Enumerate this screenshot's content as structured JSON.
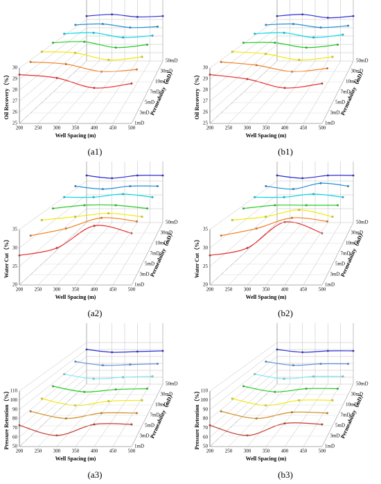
{
  "chart_data": [
    {
      "type": "line3d",
      "label": "(a1)",
      "x_label": "Well Spacing (m)",
      "y_label": "Oil Recovery（%）",
      "z_label": "Permeability（mD）",
      "x": [
        200,
        300,
        400,
        500
      ],
      "xlim": [
        200,
        500
      ],
      "xticks": [
        200,
        250,
        300,
        350,
        400,
        450,
        500
      ],
      "ylim": [
        25,
        30
      ],
      "yticks": [
        25,
        26,
        27,
        28,
        29,
        30
      ],
      "series": [
        {
          "name": "1mD",
          "color": "#e8282a",
          "values": [
            29.4,
            29.1,
            28.2,
            28.6
          ]
        },
        {
          "name": "3mD",
          "color": "#f07d1a",
          "values": [
            29.8,
            29.6,
            28.9,
            29.1
          ]
        },
        {
          "name": "5mD",
          "color": "#f2ea00",
          "values": [
            30.0,
            29.9,
            29.2,
            29.5
          ]
        },
        {
          "name": "7mD",
          "color": "#22cc22",
          "values": [
            30.1,
            30.2,
            29.6,
            29.9
          ]
        },
        {
          "name": "10mD",
          "color": "#00d8e8",
          "values": [
            30.2,
            30.3,
            29.8,
            30.0
          ]
        },
        {
          "name": "30mD",
          "color": "#1e8fd8",
          "values": [
            30.3,
            30.4,
            30.0,
            30.1
          ]
        },
        {
          "name": "50mD",
          "color": "#2b2bd0",
          "values": [
            30.4,
            30.6,
            30.3,
            30.4
          ]
        }
      ]
    },
    {
      "type": "line3d",
      "label": "(b1)",
      "x_label": "Well Spacing (m)",
      "y_label": "Oil Recovery（%）",
      "z_label": "Permeability（mD）",
      "x": [
        200,
        300,
        400,
        500
      ],
      "xlim": [
        200,
        500
      ],
      "xticks": [
        200,
        250,
        300,
        350,
        400,
        450,
        500
      ],
      "ylim": [
        25,
        30
      ],
      "yticks": [
        25,
        26,
        27,
        28,
        29,
        30
      ],
      "series": [
        {
          "name": "1mD",
          "color": "#e8282a",
          "values": [
            29.4,
            29.0,
            28.2,
            28.6
          ]
        },
        {
          "name": "3mD",
          "color": "#f07d1a",
          "values": [
            29.8,
            29.5,
            28.9,
            29.2
          ]
        },
        {
          "name": "5mD",
          "color": "#f2ea00",
          "values": [
            30.0,
            29.8,
            29.2,
            29.5
          ]
        },
        {
          "name": "7mD",
          "color": "#22cc22",
          "values": [
            30.1,
            30.1,
            29.6,
            29.9
          ]
        },
        {
          "name": "10mD",
          "color": "#00d8e8",
          "values": [
            30.2,
            30.3,
            29.8,
            30.1
          ]
        },
        {
          "name": "30mD",
          "color": "#1e8fd8",
          "values": [
            30.3,
            30.4,
            30.0,
            30.2
          ]
        },
        {
          "name": "50mD",
          "color": "#2b2bd0",
          "values": [
            30.4,
            30.6,
            30.2,
            30.4
          ]
        }
      ]
    },
    {
      "type": "line3d",
      "label": "(a2)",
      "x_label": "Well Spacing (m)",
      "y_label": "Water Cut（%）",
      "z_label": "Permeability（mD）",
      "x": [
        200,
        300,
        400,
        500
      ],
      "xlim": [
        200,
        500
      ],
      "xticks": [
        200,
        250,
        300,
        350,
        400,
        450,
        500
      ],
      "ylim": [
        20,
        35
      ],
      "yticks": [
        20,
        25,
        30,
        35
      ],
      "series": [
        {
          "name": "1mD",
          "color": "#e8282a",
          "values": [
            28,
            30,
            36,
            34
          ]
        },
        {
          "name": "3mD",
          "color": "#f07d1a",
          "values": [
            31,
            33,
            36,
            35
          ]
        },
        {
          "name": "5mD",
          "color": "#f2ea00",
          "values": [
            33,
            34,
            35,
            34
          ]
        },
        {
          "name": "7mD",
          "color": "#22cc22",
          "values": [
            34,
            35,
            35,
            34
          ]
        },
        {
          "name": "10mD",
          "color": "#00d8e8",
          "values": [
            35,
            35,
            36,
            35
          ]
        },
        {
          "name": "30mD",
          "color": "#1e8fd8",
          "values": [
            36,
            35,
            36,
            36
          ]
        },
        {
          "name": "50mD",
          "color": "#2b2bd0",
          "values": [
            37,
            36,
            37,
            37
          ]
        }
      ]
    },
    {
      "type": "line3d",
      "label": "(b2)",
      "x_label": "Well Spacing (m)",
      "y_label": "Water Cut（%）",
      "z_label": "Permeability（mD）",
      "x": [
        200,
        300,
        400,
        500
      ],
      "xlim": [
        200,
        500
      ],
      "xticks": [
        200,
        250,
        300,
        350,
        400,
        450,
        500
      ],
      "ylim": [
        20,
        35
      ],
      "yticks": [
        20,
        25,
        30,
        35
      ],
      "series": [
        {
          "name": "1mD",
          "color": "#e8282a",
          "values": [
            28,
            30,
            37,
            34
          ]
        },
        {
          "name": "3mD",
          "color": "#f07d1a",
          "values": [
            31,
            33,
            36,
            35
          ]
        },
        {
          "name": "5mD",
          "color": "#f2ea00",
          "values": [
            33,
            34,
            36,
            34
          ]
        },
        {
          "name": "7mD",
          "color": "#22cc22",
          "values": [
            34,
            35,
            35,
            35
          ]
        },
        {
          "name": "10mD",
          "color": "#00d8e8",
          "values": [
            35,
            35,
            36,
            35
          ]
        },
        {
          "name": "30mD",
          "color": "#1e8fd8",
          "values": [
            36,
            35,
            37,
            36
          ]
        },
        {
          "name": "50mD",
          "color": "#2b2bd0",
          "values": [
            37,
            36,
            37,
            37
          ]
        }
      ]
    },
    {
      "type": "line3d",
      "label": "(a3)",
      "x_label": "Well Spacing (m)",
      "y_label": "Pressure Retention（%）",
      "z_label": "Permeability（mD）",
      "x": [
        200,
        300,
        400,
        500
      ],
      "xlim": [
        200,
        500
      ],
      "xticks": [
        200,
        250,
        300,
        350,
        400,
        450,
        500
      ],
      "ylim": [
        50,
        110
      ],
      "yticks": [
        50,
        60,
        70,
        80,
        90,
        100,
        110
      ],
      "series": [
        {
          "name": "1mD",
          "color": "#c0392b",
          "values": [
            73,
            62,
            74,
            74
          ]
        },
        {
          "name": "3mD",
          "color": "#d08a1a",
          "values": [
            78,
            70,
            76,
            76
          ]
        },
        {
          "name": "5mD",
          "color": "#f2ea00",
          "values": [
            82,
            74,
            79,
            80
          ]
        },
        {
          "name": "7mD",
          "color": "#22cc22",
          "values": [
            86,
            79,
            82,
            83
          ]
        },
        {
          "name": "10mD",
          "color": "#7fe8f0",
          "values": [
            90,
            84,
            86,
            87
          ]
        },
        {
          "name": "30mD",
          "color": "#5a8ed8",
          "values": [
            95,
            90,
            91,
            92
          ]
        },
        {
          "name": "50mD",
          "color": "#2b2bd0",
          "values": [
            100,
            96,
            97,
            98
          ]
        }
      ]
    },
    {
      "type": "line3d",
      "label": "(b3)",
      "x_label": "Well Spacing (m)",
      "y_label": "Pressure Retention（%）",
      "z_label": "Permeability（mD）",
      "x": [
        200,
        300,
        400,
        500
      ],
      "xlim": [
        200,
        500
      ],
      "xticks": [
        200,
        250,
        300,
        350,
        400,
        450,
        500
      ],
      "ylim": [
        50,
        110
      ],
      "yticks": [
        50,
        60,
        70,
        80,
        90,
        100,
        110
      ],
      "series": [
        {
          "name": "1mD",
          "color": "#c0392b",
          "values": [
            73,
            62,
            75,
            74
          ]
        },
        {
          "name": "3mD",
          "color": "#d08a1a",
          "values": [
            78,
            70,
            77,
            76
          ]
        },
        {
          "name": "5mD",
          "color": "#f2ea00",
          "values": [
            82,
            74,
            80,
            80
          ]
        },
        {
          "name": "7mD",
          "color": "#22cc22",
          "values": [
            86,
            79,
            83,
            83
          ]
        },
        {
          "name": "10mD",
          "color": "#7fe8f0",
          "values": [
            90,
            84,
            87,
            87
          ]
        },
        {
          "name": "30mD",
          "color": "#5a8ed8",
          "values": [
            95,
            90,
            92,
            92
          ]
        },
        {
          "name": "50mD",
          "color": "#2b2bd0",
          "values": [
            100,
            96,
            98,
            98
          ]
        }
      ]
    }
  ]
}
